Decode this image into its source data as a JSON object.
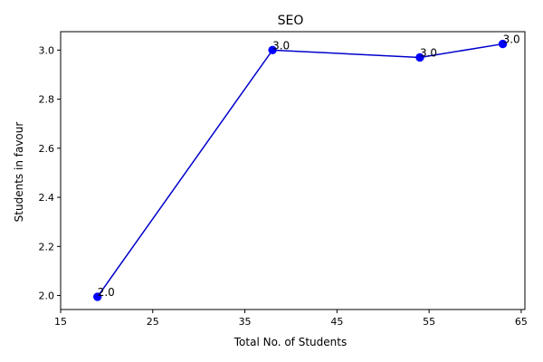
{
  "chart_data": {
    "type": "line",
    "title": "SEO",
    "xlabel": "Total No. of Students",
    "ylabel": "Students in favour",
    "xlim": [
      15,
      65.4
    ],
    "ylim": [
      1.943,
      3.075
    ],
    "xticks": [
      15,
      25,
      35,
      45,
      55,
      65
    ],
    "yticks": [
      2.0,
      2.2,
      2.4,
      2.6,
      2.8,
      3.0
    ],
    "ytick_labels": [
      "2.0",
      "2.2",
      "2.4",
      "2.6",
      "2.8",
      "3.0"
    ],
    "grid": false,
    "series": [
      {
        "color": "#0000cc",
        "marker_color": "#0000ff",
        "points": [
          {
            "x": 19,
            "y": 1.995,
            "label": "2.0"
          },
          {
            "x": 38,
            "y": 3.0,
            "label": "3.0"
          },
          {
            "x": 54,
            "y": 2.97,
            "label": "3.0"
          },
          {
            "x": 63,
            "y": 3.025,
            "label": "3.0"
          }
        ]
      }
    ]
  }
}
